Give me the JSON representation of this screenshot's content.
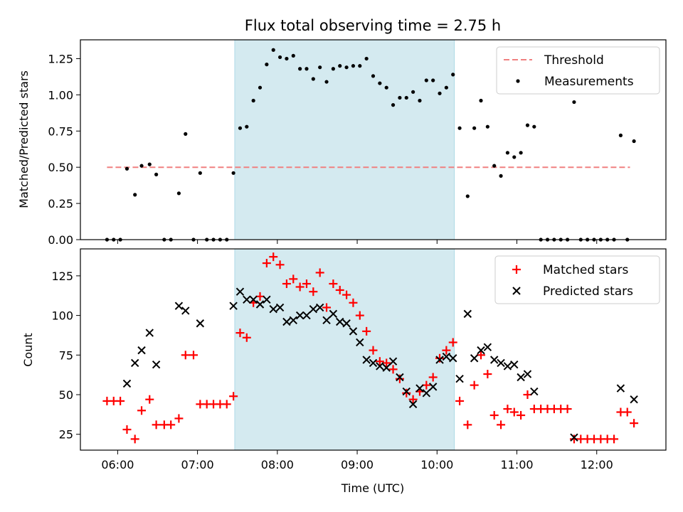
{
  "chart_data": [
    {
      "type": "scatter",
      "title": "Flux total observing time = 2.75 h",
      "xlabel": "",
      "ylabel": "Matched/Predicted stars",
      "xlim": [
        "05:32",
        "12:52"
      ],
      "ylim": [
        0,
        1.38
      ],
      "yticks": [
        "0.00",
        "0.25",
        "0.50",
        "0.75",
        "1.00",
        "1.25"
      ],
      "shaded_region": {
        "start": "07:28",
        "end": "10:13",
        "color": "#d4eaf0"
      },
      "threshold": {
        "name": "Threshold",
        "value": 0.5,
        "x_start": "05:52",
        "x_end": "12:25",
        "color": "#f08080"
      },
      "series": [
        {
          "name": "Measurements",
          "color": "#000000",
          "points": [
            [
              "05:52",
              0.0
            ],
            [
              "05:57",
              0.0
            ],
            [
              "06:02",
              0.0
            ],
            [
              "06:07",
              0.49
            ],
            [
              "06:13",
              0.31
            ],
            [
              "06:18",
              0.51
            ],
            [
              "06:24",
              0.52
            ],
            [
              "06:29",
              0.45
            ],
            [
              "06:35",
              0.0
            ],
            [
              "06:40",
              0.0
            ],
            [
              "06:46",
              0.32
            ],
            [
              "06:51",
              0.73
            ],
            [
              "06:57",
              0.0
            ],
            [
              "07:02",
              0.46
            ],
            [
              "07:07",
              0.0
            ],
            [
              "07:12",
              0.0
            ],
            [
              "07:17",
              0.0
            ],
            [
              "07:22",
              0.0
            ],
            [
              "07:27",
              0.46
            ],
            [
              "07:32",
              0.77
            ],
            [
              "07:37",
              0.78
            ],
            [
              "07:42",
              0.96
            ],
            [
              "07:47",
              1.05
            ],
            [
              "07:52",
              1.21
            ],
            [
              "07:57",
              1.31
            ],
            [
              "08:02",
              1.26
            ],
            [
              "08:07",
              1.25
            ],
            [
              "08:12",
              1.27
            ],
            [
              "08:17",
              1.18
            ],
            [
              "08:22",
              1.18
            ],
            [
              "08:27",
              1.11
            ],
            [
              "08:32",
              1.19
            ],
            [
              "08:37",
              1.09
            ],
            [
              "08:42",
              1.18
            ],
            [
              "08:47",
              1.2
            ],
            [
              "08:52",
              1.19
            ],
            [
              "08:57",
              1.2
            ],
            [
              "09:02",
              1.2
            ],
            [
              "09:07",
              1.25
            ],
            [
              "09:12",
              1.13
            ],
            [
              "09:17",
              1.08
            ],
            [
              "09:22",
              1.05
            ],
            [
              "09:27",
              0.93
            ],
            [
              "09:32",
              0.98
            ],
            [
              "09:37",
              0.98
            ],
            [
              "09:42",
              1.02
            ],
            [
              "09:47",
              0.96
            ],
            [
              "09:52",
              1.1
            ],
            [
              "09:57",
              1.1
            ],
            [
              "10:02",
              1.01
            ],
            [
              "10:07",
              1.05
            ],
            [
              "10:12",
              1.14
            ],
            [
              "10:17",
              0.77
            ],
            [
              "10:23",
              0.3
            ],
            [
              "10:28",
              0.77
            ],
            [
              "10:33",
              0.96
            ],
            [
              "10:38",
              0.78
            ],
            [
              "10:43",
              0.51
            ],
            [
              "10:48",
              0.44
            ],
            [
              "10:53",
              0.6
            ],
            [
              "10:58",
              0.57
            ],
            [
              "11:03",
              0.6
            ],
            [
              "11:08",
              0.79
            ],
            [
              "11:13",
              0.78
            ],
            [
              "11:18",
              0.0
            ],
            [
              "11:23",
              0.0
            ],
            [
              "11:28",
              0.0
            ],
            [
              "11:33",
              0.0
            ],
            [
              "11:38",
              0.0
            ],
            [
              "11:43",
              0.95
            ],
            [
              "11:48",
              0.0
            ],
            [
              "11:53",
              0.0
            ],
            [
              "11:58",
              0.0
            ],
            [
              "12:03",
              0.0
            ],
            [
              "12:08",
              0.0
            ],
            [
              "12:13",
              0.0
            ],
            [
              "12:18",
              0.72
            ],
            [
              "12:23",
              0.0
            ],
            [
              "12:28",
              0.68
            ]
          ]
        }
      ],
      "legend": "top-right"
    },
    {
      "type": "scatter",
      "title": "",
      "xlabel": "Time (UTC)",
      "ylabel": "Count",
      "xlim": [
        "05:32",
        "12:52"
      ],
      "ylim": [
        15,
        142
      ],
      "yticks": [
        "25",
        "50",
        "75",
        "100",
        "125"
      ],
      "xticks": [
        "06:00",
        "07:00",
        "08:00",
        "09:00",
        "10:00",
        "11:00",
        "12:00"
      ],
      "shaded_region": {
        "start": "07:28",
        "end": "10:13",
        "color": "#d4eaf0"
      },
      "series": [
        {
          "name": "Matched stars",
          "marker": "+",
          "color": "#ff0000",
          "points": [
            [
              "05:52",
              46
            ],
            [
              "05:57",
              46
            ],
            [
              "06:02",
              46
            ],
            [
              "06:07",
              28
            ],
            [
              "06:13",
              22
            ],
            [
              "06:18",
              40
            ],
            [
              "06:24",
              47
            ],
            [
              "06:29",
              31
            ],
            [
              "06:35",
              31
            ],
            [
              "06:40",
              31
            ],
            [
              "06:46",
              35
            ],
            [
              "06:51",
              75
            ],
            [
              "06:57",
              75
            ],
            [
              "07:02",
              44
            ],
            [
              "07:07",
              44
            ],
            [
              "07:12",
              44
            ],
            [
              "07:17",
              44
            ],
            [
              "07:22",
              44
            ],
            [
              "07:27",
              49
            ],
            [
              "07:32",
              89
            ],
            [
              "07:37",
              86
            ],
            [
              "07:42",
              108
            ],
            [
              "07:47",
              112
            ],
            [
              "07:52",
              133
            ],
            [
              "07:57",
              137
            ],
            [
              "08:02",
              132
            ],
            [
              "08:07",
              120
            ],
            [
              "08:12",
              123
            ],
            [
              "08:17",
              118
            ],
            [
              "08:22",
              120
            ],
            [
              "08:27",
              115
            ],
            [
              "08:32",
              127
            ],
            [
              "08:37",
              105
            ],
            [
              "08:42",
              120
            ],
            [
              "08:47",
              116
            ],
            [
              "08:52",
              113
            ],
            [
              "08:57",
              108
            ],
            [
              "09:02",
              100
            ],
            [
              "09:07",
              90
            ],
            [
              "09:12",
              78
            ],
            [
              "09:17",
              71
            ],
            [
              "09:22",
              70
            ],
            [
              "09:27",
              66
            ],
            [
              "09:32",
              60
            ],
            [
              "09:37",
              51
            ],
            [
              "09:42",
              47
            ],
            [
              "09:47",
              52
            ],
            [
              "09:52",
              56
            ],
            [
              "09:57",
              61
            ],
            [
              "10:02",
              73
            ],
            [
              "10:07",
              78
            ],
            [
              "10:12",
              83
            ],
            [
              "10:17",
              46
            ],
            [
              "10:23",
              31
            ],
            [
              "10:28",
              56
            ],
            [
              "10:33",
              75
            ],
            [
              "10:38",
              63
            ],
            [
              "10:43",
              37
            ],
            [
              "10:48",
              31
            ],
            [
              "10:53",
              41
            ],
            [
              "10:58",
              39
            ],
            [
              "11:03",
              37
            ],
            [
              "11:08",
              50
            ],
            [
              "11:13",
              41
            ],
            [
              "11:18",
              41
            ],
            [
              "11:23",
              41
            ],
            [
              "11:28",
              41
            ],
            [
              "11:33",
              41
            ],
            [
              "11:38",
              41
            ],
            [
              "11:43",
              22
            ],
            [
              "11:48",
              22
            ],
            [
              "11:53",
              22
            ],
            [
              "11:58",
              22
            ],
            [
              "12:03",
              22
            ],
            [
              "12:08",
              22
            ],
            [
              "12:13",
              22
            ],
            [
              "12:18",
              39
            ],
            [
              "12:23",
              39
            ],
            [
              "12:28",
              32
            ]
          ]
        },
        {
          "name": "Predicted stars",
          "marker": "x",
          "color": "#000000",
          "points": [
            [
              "06:07",
              57
            ],
            [
              "06:13",
              70
            ],
            [
              "06:18",
              78
            ],
            [
              "06:24",
              89
            ],
            [
              "06:29",
              69
            ],
            [
              "06:46",
              106
            ],
            [
              "06:51",
              103
            ],
            [
              "07:02",
              95
            ],
            [
              "07:27",
              106
            ],
            [
              "07:32",
              115
            ],
            [
              "07:37",
              110
            ],
            [
              "07:42",
              110
            ],
            [
              "07:47",
              107
            ],
            [
              "07:52",
              110
            ],
            [
              "07:57",
              104
            ],
            [
              "08:02",
              105
            ],
            [
              "08:07",
              96
            ],
            [
              "08:12",
              97
            ],
            [
              "08:17",
              100
            ],
            [
              "08:22",
              100
            ],
            [
              "08:27",
              104
            ],
            [
              "08:32",
              105
            ],
            [
              "08:37",
              97
            ],
            [
              "08:42",
              101
            ],
            [
              "08:47",
              96
            ],
            [
              "08:52",
              95
            ],
            [
              "08:57",
              90
            ],
            [
              "09:02",
              83
            ],
            [
              "09:07",
              72
            ],
            [
              "09:12",
              70
            ],
            [
              "09:17",
              68
            ],
            [
              "09:22",
              67
            ],
            [
              "09:27",
              71
            ],
            [
              "09:32",
              61
            ],
            [
              "09:37",
              52
            ],
            [
              "09:42",
              44
            ],
            [
              "09:47",
              54
            ],
            [
              "09:52",
              51
            ],
            [
              "09:57",
              55
            ],
            [
              "10:02",
              72
            ],
            [
              "10:07",
              74
            ],
            [
              "10:12",
              73
            ],
            [
              "10:17",
              60
            ],
            [
              "10:23",
              101
            ],
            [
              "10:28",
              73
            ],
            [
              "10:33",
              78
            ],
            [
              "10:38",
              80
            ],
            [
              "10:43",
              72
            ],
            [
              "10:48",
              70
            ],
            [
              "10:53",
              68
            ],
            [
              "10:58",
              69
            ],
            [
              "11:03",
              61
            ],
            [
              "11:08",
              63
            ],
            [
              "11:13",
              52
            ],
            [
              "11:43",
              23
            ],
            [
              "12:18",
              54
            ],
            [
              "12:28",
              47
            ]
          ]
        }
      ],
      "legend": "top-right"
    }
  ]
}
